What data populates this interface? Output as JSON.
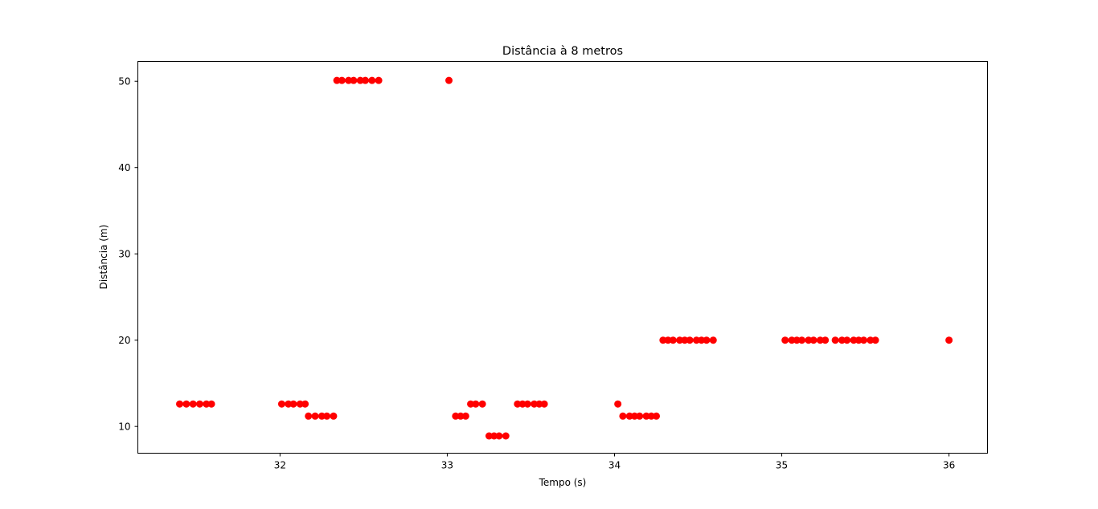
{
  "chart_data": {
    "type": "scatter",
    "title": "Distância à 8 metros",
    "xlabel": "Tempo (s)",
    "ylabel": "Distância (m)",
    "xlim": [
      31.15,
      36.23
    ],
    "ylim": [
      6.9,
      52.3
    ],
    "xticks": [
      32,
      33,
      34,
      35,
      36
    ],
    "xtick_labels": [
      "32",
      "33",
      "34",
      "35",
      "36"
    ],
    "yticks": [
      10,
      20,
      30,
      40,
      50
    ],
    "ytick_labels": [
      "10",
      "20",
      "30",
      "40",
      "50"
    ],
    "grid": false,
    "marker_color": "#ff0000",
    "series": [
      {
        "points": [
          [
            31.4,
            12.6
          ],
          [
            31.44,
            12.6
          ],
          [
            31.48,
            12.6
          ],
          [
            31.52,
            12.6
          ],
          [
            31.56,
            12.6
          ],
          [
            31.59,
            12.6
          ],
          [
            32.01,
            12.6
          ],
          [
            32.05,
            12.6
          ],
          [
            32.08,
            12.6
          ],
          [
            32.12,
            12.6
          ],
          [
            32.15,
            12.6
          ],
          [
            32.17,
            11.2
          ],
          [
            32.21,
            11.2
          ],
          [
            32.25,
            11.2
          ],
          [
            32.28,
            11.2
          ],
          [
            32.32,
            11.2
          ],
          [
            32.34,
            50.1
          ],
          [
            32.37,
            50.1
          ],
          [
            32.41,
            50.1
          ],
          [
            32.44,
            50.1
          ],
          [
            32.48,
            50.1
          ],
          [
            32.51,
            50.1
          ],
          [
            32.55,
            50.1
          ],
          [
            32.59,
            50.1
          ],
          [
            33.01,
            50.1
          ],
          [
            33.05,
            11.2
          ],
          [
            33.08,
            11.2
          ],
          [
            33.11,
            11.2
          ],
          [
            33.14,
            12.6
          ],
          [
            33.17,
            12.6
          ],
          [
            33.21,
            12.6
          ],
          [
            33.25,
            8.9
          ],
          [
            33.28,
            8.9
          ],
          [
            33.31,
            8.9
          ],
          [
            33.35,
            8.9
          ],
          [
            33.42,
            12.6
          ],
          [
            33.45,
            12.6
          ],
          [
            33.48,
            12.6
          ],
          [
            33.52,
            12.6
          ],
          [
            33.55,
            12.6
          ],
          [
            33.58,
            12.6
          ],
          [
            34.02,
            12.6
          ],
          [
            34.05,
            11.2
          ],
          [
            34.09,
            11.2
          ],
          [
            34.12,
            11.2
          ],
          [
            34.15,
            11.2
          ],
          [
            34.19,
            11.2
          ],
          [
            34.22,
            11.2
          ],
          [
            34.25,
            11.2
          ],
          [
            34.29,
            20.0
          ],
          [
            34.32,
            20.0
          ],
          [
            34.35,
            20.0
          ],
          [
            34.39,
            20.0
          ],
          [
            34.42,
            20.0
          ],
          [
            34.45,
            20.0
          ],
          [
            34.49,
            20.0
          ],
          [
            34.52,
            20.0
          ],
          [
            34.55,
            20.0
          ],
          [
            34.59,
            20.0
          ],
          [
            35.02,
            20.0
          ],
          [
            35.06,
            20.0
          ],
          [
            35.09,
            20.0
          ],
          [
            35.12,
            20.0
          ],
          [
            35.16,
            20.0
          ],
          [
            35.19,
            20.0
          ],
          [
            35.23,
            20.0
          ],
          [
            35.26,
            20.0
          ],
          [
            35.32,
            20.0
          ],
          [
            35.36,
            20.0
          ],
          [
            35.39,
            20.0
          ],
          [
            35.43,
            20.0
          ],
          [
            35.46,
            20.0
          ],
          [
            35.49,
            20.0
          ],
          [
            35.53,
            20.0
          ],
          [
            35.56,
            20.0
          ],
          [
            36.0,
            20.0
          ]
        ]
      }
    ]
  }
}
